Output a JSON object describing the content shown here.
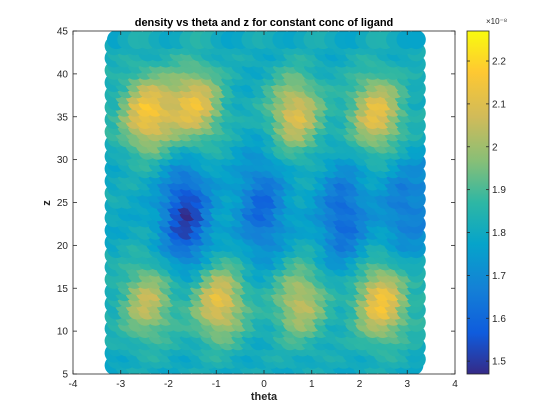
{
  "chart_data": {
    "type": "scatter",
    "title": "density vs theta and z for constant conc of ligand",
    "xlabel": "theta",
    "ylabel": "z",
    "xlim": [
      -4,
      4
    ],
    "ylim": [
      5,
      45
    ],
    "xticks": [
      "-4",
      "-3",
      "-2",
      "-1",
      "0",
      "1",
      "2",
      "3",
      "4"
    ],
    "yticks": [
      "5",
      "10",
      "15",
      "20",
      "25",
      "30",
      "35",
      "40",
      "45"
    ],
    "colorbar": {
      "label_exponent": "×10⁻⁸",
      "range": [
        1.47,
        2.27
      ],
      "ticks": [
        "1.5",
        "1.6",
        "1.7",
        "1.8",
        "1.9",
        "2",
        "2.1",
        "2.2"
      ],
      "colormap": "parula"
    },
    "grid": false,
    "density_field": {
      "theta_range": [
        -3.14,
        3.14
      ],
      "z_range": [
        6,
        44
      ],
      "base": 1.8,
      "peaks": [
        {
          "theta": -2.4,
          "z": 36,
          "value": 2.15
        },
        {
          "theta": -1.4,
          "z": 37,
          "value": 2.12
        },
        {
          "theta": 0.7,
          "z": 36,
          "value": 2.1
        },
        {
          "theta": 2.4,
          "z": 36,
          "value": 2.12
        },
        {
          "theta": -2.4,
          "z": 14,
          "value": 2.05
        },
        {
          "theta": -0.9,
          "z": 14,
          "value": 2.12
        },
        {
          "theta": 0.8,
          "z": 14,
          "value": 2.05
        },
        {
          "theta": 2.5,
          "z": 14,
          "value": 2.15
        }
      ],
      "troughs": [
        {
          "theta": -1.6,
          "z": 24,
          "value": 1.5
        },
        {
          "theta": 0.0,
          "z": 25,
          "value": 1.6
        },
        {
          "theta": 1.7,
          "z": 24,
          "value": 1.6
        },
        {
          "theta": 3.0,
          "z": 25,
          "value": 1.65
        }
      ]
    }
  }
}
